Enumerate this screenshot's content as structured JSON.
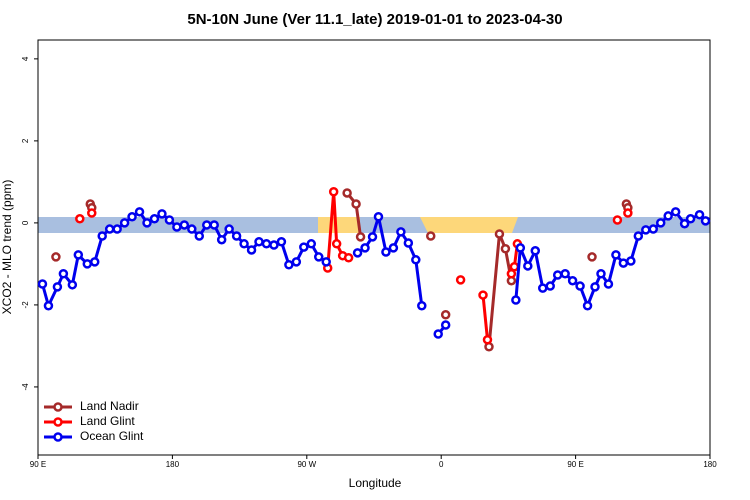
{
  "chart_data": {
    "type": "line",
    "title": "5N-10N June (Ver 11.1_late)   2019-01-01 to 2023-04-30",
    "x_label": "Longitude",
    "y_label": "XCO2 - MLO trend (ppm)",
    "xlim": [
      90,
      540
    ],
    "ylim": [
      -5.66,
      4.46
    ],
    "xticks": [
      {
        "value": 90,
        "label": "90 E"
      },
      {
        "value": 180,
        "label": "180"
      },
      {
        "value": 270,
        "label": "90 W"
      },
      {
        "value": 360,
        "label": "0"
      },
      {
        "value": 450,
        "label": "90 E"
      },
      {
        "value": 540,
        "label": "180"
      }
    ],
    "yticks": [
      -4,
      -2,
      0,
      2,
      4
    ],
    "legend": "bottom-left",
    "series": [
      {
        "name": "Land Nadir",
        "color": "#a52a2a",
        "x": [
          102,
          null,
          125,
          126,
          null,
          297,
          303,
          306,
          null,
          353,
          null,
          363,
          null,
          392,
          399,
          403,
          407,
          null,
          461,
          null,
          484,
          485
        ],
        "values": [
          -0.83,
          null,
          0.46,
          0.37,
          null,
          0.73,
          0.46,
          -0.34,
          null,
          -0.32,
          null,
          -2.24,
          null,
          -3.02,
          -0.27,
          -0.63,
          -1.41,
          null,
          -0.83,
          null,
          0.46,
          0.37
        ]
      },
      {
        "name": "Land Glint",
        "color": "#ff0000",
        "x": [
          118,
          null,
          126,
          null,
          284,
          288,
          290,
          294,
          298,
          null,
          373,
          null,
          388,
          391,
          null,
          407,
          409,
          411,
          null,
          478,
          null,
          485
        ],
        "values": [
          0.1,
          null,
          0.24,
          null,
          -1.1,
          0.76,
          -0.51,
          -0.8,
          -0.85,
          null,
          -1.39,
          null,
          -1.76,
          -2.85,
          null,
          -1.24,
          -1.07,
          -0.51,
          null,
          0.07,
          null,
          0.24
        ]
      },
      {
        "name": "Ocean Glint",
        "color": "#0000ee",
        "x": [
          93,
          97,
          103,
          107,
          113,
          117,
          123,
          128,
          133,
          138,
          143,
          148,
          153,
          158,
          163,
          168,
          173,
          178,
          183,
          188,
          193,
          198,
          203,
          208,
          213,
          218,
          223,
          228,
          233,
          238,
          243,
          248,
          253,
          258,
          263,
          268,
          273,
          278,
          283,
          null,
          304,
          309,
          314,
          318,
          323,
          328,
          333,
          338,
          343,
          347,
          null,
          358,
          363,
          null,
          410,
          413,
          418,
          423,
          428,
          433,
          438,
          443,
          448,
          453,
          458,
          463,
          467,
          472,
          477,
          482,
          487,
          492,
          497,
          502,
          507,
          512,
          517,
          523,
          527,
          533,
          537
        ],
        "values": [
          -1.49,
          -2.02,
          -1.56,
          -1.24,
          -1.51,
          -0.78,
          -1.0,
          -0.95,
          -0.32,
          -0.15,
          -0.15,
          0,
          0.15,
          0.27,
          0,
          0.1,
          0.22,
          0.07,
          -0.1,
          -0.05,
          -0.15,
          -0.32,
          -0.05,
          -0.05,
          -0.41,
          -0.15,
          -0.32,
          -0.51,
          -0.66,
          -0.46,
          -0.51,
          -0.54,
          -0.46,
          -1.02,
          -0.95,
          -0.59,
          -0.51,
          -0.83,
          -0.95,
          null,
          -0.73,
          -0.61,
          -0.34,
          0.15,
          -0.71,
          -0.61,
          -0.22,
          -0.49,
          -0.9,
          -2.02,
          null,
          -2.71,
          -2.49,
          null,
          -1.88,
          -0.61,
          -1.05,
          -0.68,
          -1.59,
          -1.54,
          -1.27,
          -1.24,
          -1.41,
          -1.54,
          -2.02,
          -1.56,
          -1.24,
          -1.49,
          -0.78,
          -0.98,
          -0.93,
          -0.32,
          -0.17,
          -0.15,
          0,
          0.17,
          0.27,
          -0.02,
          0.1,
          0.2,
          0.05
        ]
      }
    ]
  }
}
